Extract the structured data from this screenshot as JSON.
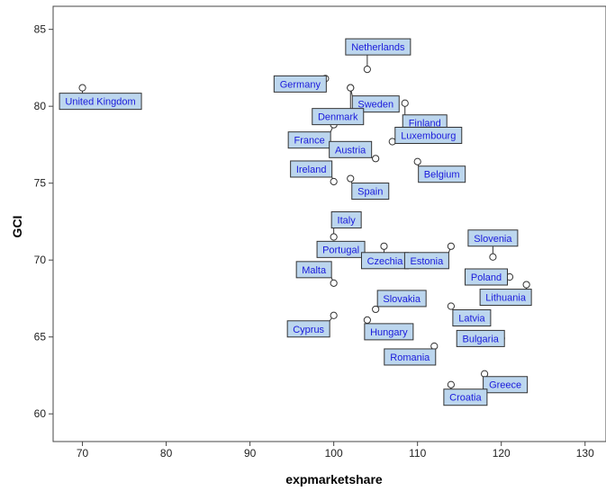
{
  "chart_data": {
    "type": "scatter",
    "title": "",
    "xlabel": "expmarketshare",
    "ylabel": "GCI",
    "xlim": [
      66.5,
      132.5
    ],
    "ylim": [
      58.2,
      86.5
    ],
    "xticks": [
      70,
      80,
      90,
      100,
      110,
      120,
      130
    ],
    "yticks": [
      60,
      65,
      70,
      75,
      80,
      85
    ],
    "grid": false,
    "marker": "open-circle",
    "colors": {
      "label_fill": "#bcd6ee",
      "label_border": "#333333",
      "label_text": "#1a1adb",
      "marker": "#333333"
    },
    "points": [
      {
        "label": "United Kingdom",
        "x": 70.0,
        "y": 81.2
      },
      {
        "label": "Netherlands",
        "x": 104.0,
        "y": 82.4
      },
      {
        "label": "Germany",
        "x": 99.0,
        "y": 81.8
      },
      {
        "label": "Sweden",
        "x": 102.0,
        "y": 81.2
      },
      {
        "label": "Denmark",
        "x": 102.0,
        "y": 81.2
      },
      {
        "label": "Finland",
        "x": 108.5,
        "y": 80.2
      },
      {
        "label": "France",
        "x": 100.0,
        "y": 78.8
      },
      {
        "label": "Luxembourg",
        "x": 107.0,
        "y": 77.7
      },
      {
        "label": "Austria",
        "x": 105.0,
        "y": 76.6
      },
      {
        "label": "Belgium",
        "x": 110.0,
        "y": 76.4
      },
      {
        "label": "Ireland",
        "x": 100.0,
        "y": 75.1
      },
      {
        "label": "Spain",
        "x": 102.0,
        "y": 75.3
      },
      {
        "label": "Italy",
        "x": 100.0,
        "y": 71.5
      },
      {
        "label": "Portugal",
        "x": 103.0,
        "y": 70.4
      },
      {
        "label": "Czechia",
        "x": 106.0,
        "y": 70.9
      },
      {
        "label": "Estonia",
        "x": 114.0,
        "y": 70.9
      },
      {
        "label": "Slovenia",
        "x": 119.0,
        "y": 70.2
      },
      {
        "label": "Poland",
        "x": 121.0,
        "y": 68.9
      },
      {
        "label": "Lithuania",
        "x": 123.0,
        "y": 68.4
      },
      {
        "label": "Malta",
        "x": 100.0,
        "y": 68.5
      },
      {
        "label": "Slovakia",
        "x": 105.0,
        "y": 66.8
      },
      {
        "label": "Latvia",
        "x": 114.0,
        "y": 67.0
      },
      {
        "label": "Cyprus",
        "x": 100.0,
        "y": 66.4
      },
      {
        "label": "Hungary",
        "x": 104.0,
        "y": 66.1
      },
      {
        "label": "Bulgaria",
        "x": 120.0,
        "y": 64.9
      },
      {
        "label": "Romania",
        "x": 112.0,
        "y": 64.4
      },
      {
        "label": "Greece",
        "x": 118.0,
        "y": 62.6
      },
      {
        "label": "Croatia",
        "x": 114.0,
        "y": 61.9
      }
    ]
  }
}
